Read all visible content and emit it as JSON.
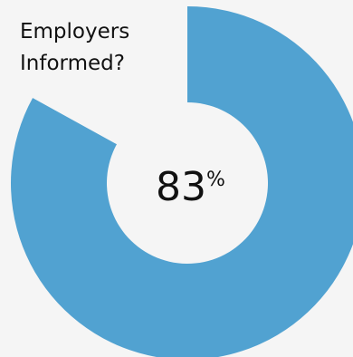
{
  "chart_data": {
    "type": "pie",
    "variant": "donut",
    "title_lines": [
      "Employers",
      "Informed?"
    ],
    "center_label": {
      "value": "83",
      "unit": "%"
    },
    "series": [
      {
        "label": "",
        "value": 83,
        "color": "#51a2d1"
      },
      {
        "label": "",
        "value": 17,
        "color": "#f5f5f5"
      }
    ]
  }
}
